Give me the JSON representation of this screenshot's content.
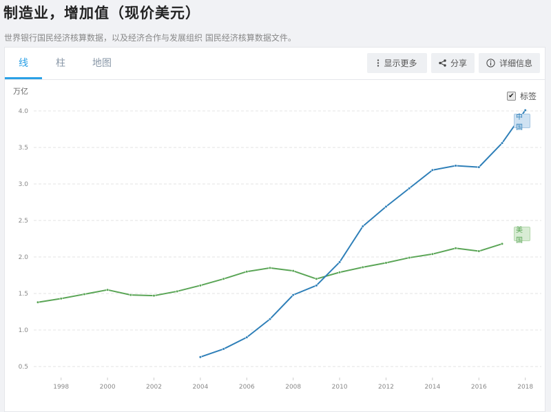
{
  "header": {
    "title": "制造业，增加值（现价美元）",
    "subtitle": "世界银行国民经济核算数据，以及经济合作与发展组织 国民经济核算数据文件。"
  },
  "tabs": [
    {
      "label": "线",
      "active": true
    },
    {
      "label": "柱",
      "active": false
    },
    {
      "label": "地图",
      "active": false
    }
  ],
  "toolbar": {
    "more_label": "显示更多",
    "more_icon": "vertical-ellipsis-icon",
    "share_label": "分享",
    "share_icon": "share-icon",
    "details_label": "详细信息",
    "details_icon": "info-circle-icon"
  },
  "labels_toggle": {
    "label": "标签",
    "checked": true
  },
  "colors": {
    "china": "#2e7fb8",
    "usa": "#5aa556",
    "accent": "#2aa0e6"
  },
  "chart_data": {
    "type": "line",
    "title": "制造业，增加值（现价美元）",
    "xlabel": "",
    "ylabel": "万亿",
    "x": [
      1997,
      1998,
      1999,
      2000,
      2001,
      2002,
      2003,
      2004,
      2005,
      2006,
      2007,
      2008,
      2009,
      2010,
      2011,
      2012,
      2013,
      2014,
      2015,
      2016,
      2017,
      2018
    ],
    "x_ticks": [
      1998,
      2000,
      2002,
      2004,
      2006,
      2008,
      2010,
      2012,
      2014,
      2016,
      2018
    ],
    "y_ticks": [
      0.5,
      1.0,
      1.5,
      2.0,
      2.5,
      3.0,
      3.5,
      4.0
    ],
    "y_tick_labels": [
      "0.5",
      "1.0",
      "1.5",
      "2.0",
      "2.5",
      "3.0",
      "3.5",
      "4.0"
    ],
    "ylim": [
      0.5,
      4.0
    ],
    "grid": true,
    "legend_position": "inline-right",
    "series": [
      {
        "name": "中国",
        "color": "#2e7fb8",
        "values": [
          null,
          null,
          null,
          null,
          null,
          null,
          null,
          0.63,
          0.74,
          0.9,
          1.15,
          1.48,
          1.61,
          1.93,
          2.42,
          2.69,
          2.94,
          3.19,
          3.25,
          3.23,
          3.56,
          4.01
        ]
      },
      {
        "name": "美国",
        "color": "#5aa556",
        "values": [
          1.38,
          1.43,
          1.49,
          1.55,
          1.48,
          1.47,
          1.53,
          1.61,
          1.7,
          1.8,
          1.85,
          1.81,
          1.7,
          1.79,
          1.86,
          1.92,
          1.99,
          2.04,
          2.12,
          2.08,
          2.18,
          null
        ]
      }
    ]
  }
}
